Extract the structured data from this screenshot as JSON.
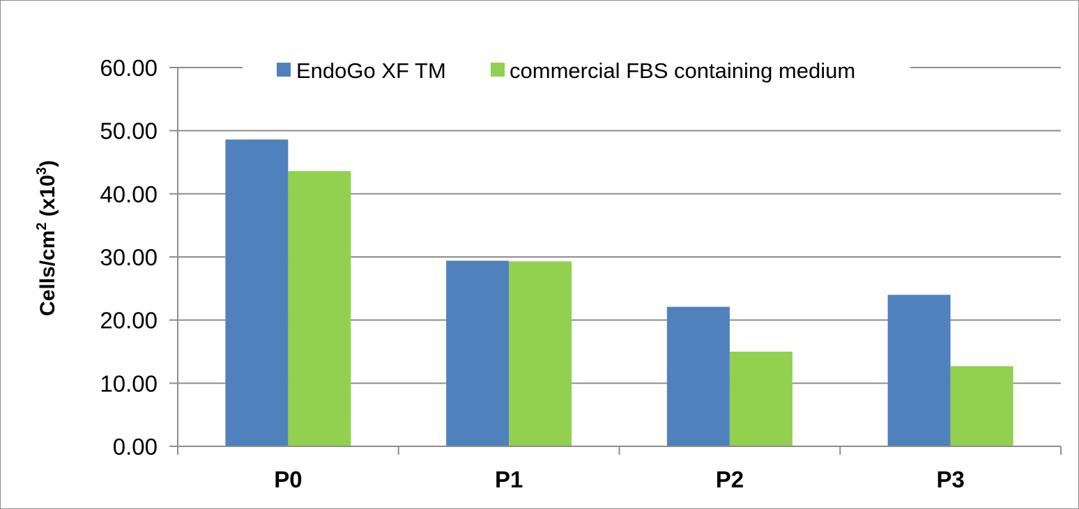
{
  "chart_data": {
    "type": "bar",
    "categories": [
      "P0",
      "P1",
      "P2",
      "P3"
    ],
    "series": [
      {
        "name": "EndoGo XF TM",
        "values": [
          48.6,
          29.4,
          22.1,
          24.0
        ],
        "color": "#4f81bd"
      },
      {
        "name": "commercial FBS containing medium",
        "values": [
          43.6,
          29.3,
          15.0,
          12.7
        ],
        "color": "#92d050"
      }
    ],
    "title": "",
    "xlabel": "",
    "ylabel": "Cells/cm",
    "ylabel_sup1": "2",
    "ylabel_mid": " (x10",
    "ylabel_sup2": "3",
    "ylabel_end": ")",
    "ylim": [
      0,
      60
    ],
    "yticks": [
      "0.00",
      "10.00",
      "20.00",
      "30.00",
      "40.00",
      "50.00",
      "60.00"
    ],
    "grid": true,
    "gridline_color": "#8c8c8c",
    "legend_position": "top-center"
  }
}
